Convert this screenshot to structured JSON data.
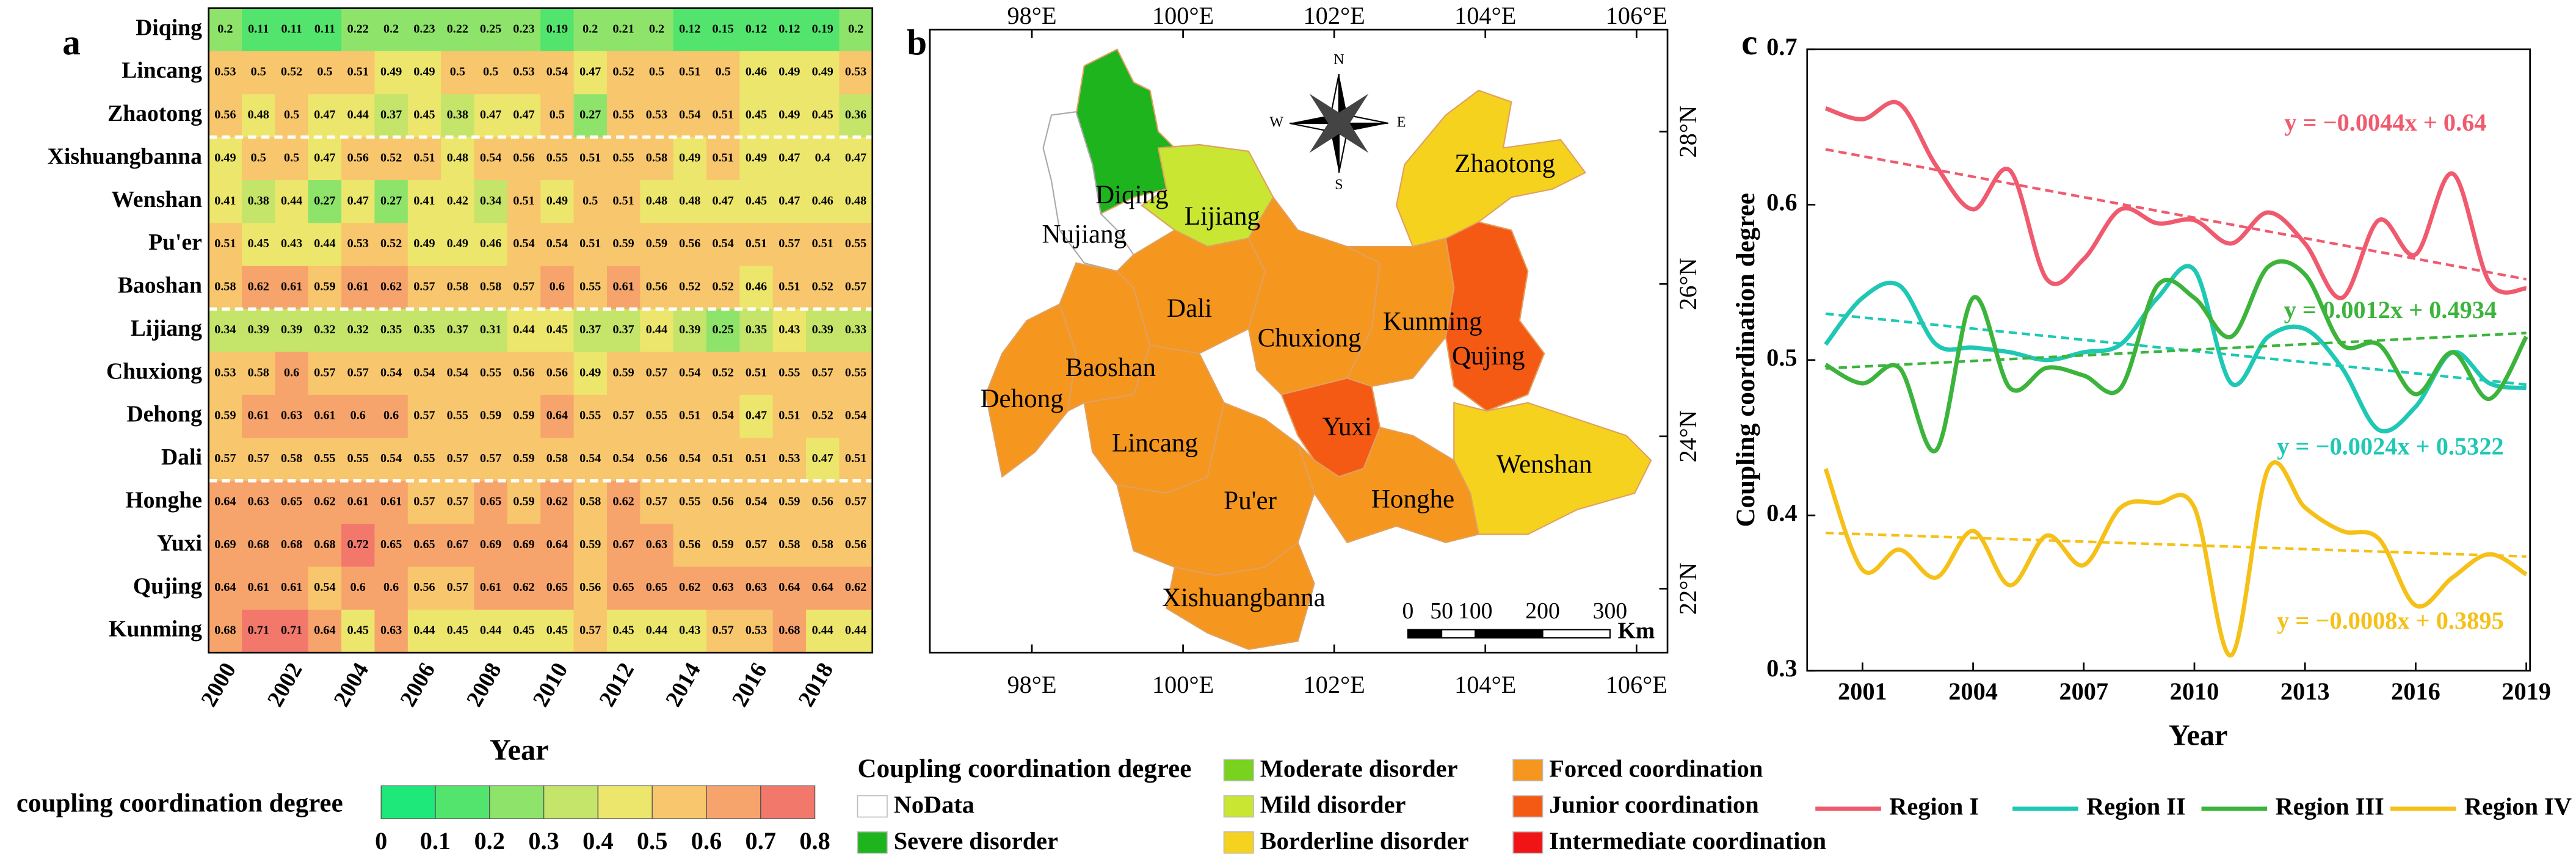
{
  "chart_data": [
    {
      "type": "heatmap",
      "label": "a",
      "xlabel": "Year",
      "categories": [
        "Diqing",
        "Lincang",
        "Zhaotong",
        "Xishuangbanna",
        "Wenshan",
        "Pu'er",
        "Baoshan",
        "Lijiang",
        "Chuxiong",
        "Dehong",
        "Dali",
        "Honghe",
        "Yuxi",
        "Qujing",
        "Kunming"
      ],
      "x": [
        2000,
        null,
        2002,
        null,
        2004,
        null,
        2006,
        null,
        2008,
        null,
        2010,
        null,
        2012,
        null,
        2014,
        null,
        2016,
        null,
        2018,
        null
      ],
      "values": [
        [
          0.2,
          0.11,
          0.11,
          0.11,
          0.22,
          0.2,
          0.23,
          0.22,
          0.25,
          0.23,
          0.19,
          0.2,
          0.21,
          0.2,
          0.12,
          0.15,
          0.12,
          0.12,
          0.19,
          0.2
        ],
        [
          0.53,
          0.5,
          0.52,
          0.5,
          0.51,
          0.49,
          0.49,
          0.5,
          0.5,
          0.53,
          0.54,
          0.47,
          0.52,
          0.5,
          0.51,
          0.5,
          0.46,
          0.49,
          0.49,
          0.53
        ],
        [
          0.56,
          0.48,
          0.5,
          0.47,
          0.44,
          0.37,
          0.45,
          0.38,
          0.47,
          0.47,
          0.5,
          0.27,
          0.55,
          0.53,
          0.54,
          0.51,
          0.45,
          0.49,
          0.45,
          0.36
        ],
        [
          0.49,
          0.5,
          0.5,
          0.47,
          0.56,
          0.52,
          0.51,
          0.48,
          0.54,
          0.56,
          0.55,
          0.51,
          0.55,
          0.58,
          0.49,
          0.51,
          0.49,
          0.47,
          0.4,
          0.47
        ],
        [
          0.41,
          0.38,
          0.44,
          0.27,
          0.47,
          0.27,
          0.41,
          0.42,
          0.34,
          0.51,
          0.49,
          0.5,
          0.51,
          0.48,
          0.48,
          0.47,
          0.45,
          0.47,
          0.46,
          0.48
        ],
        [
          0.51,
          0.45,
          0.43,
          0.44,
          0.53,
          0.52,
          0.49,
          0.49,
          0.46,
          0.54,
          0.54,
          0.51,
          0.59,
          0.59,
          0.56,
          0.54,
          0.51,
          0.57,
          0.51,
          0.55
        ],
        [
          0.58,
          0.62,
          0.61,
          0.59,
          0.61,
          0.62,
          0.57,
          0.58,
          0.58,
          0.57,
          0.6,
          0.55,
          0.61,
          0.56,
          0.52,
          0.52,
          0.46,
          0.51,
          0.52,
          0.57
        ],
        [
          0.34,
          0.39,
          0.39,
          0.32,
          0.32,
          0.35,
          0.35,
          0.37,
          0.31,
          0.44,
          0.45,
          0.37,
          0.37,
          0.44,
          0.39,
          0.25,
          0.35,
          0.43,
          0.39,
          0.33
        ],
        [
          0.53,
          0.58,
          0.6,
          0.57,
          0.57,
          0.54,
          0.54,
          0.54,
          0.55,
          0.56,
          0.56,
          0.49,
          0.59,
          0.57,
          0.54,
          0.52,
          0.51,
          0.55,
          0.57,
          0.55
        ],
        [
          0.59,
          0.61,
          0.63,
          0.61,
          0.6,
          0.6,
          0.57,
          0.55,
          0.59,
          0.59,
          0.64,
          0.55,
          0.57,
          0.55,
          0.51,
          0.54,
          0.47,
          0.51,
          0.52,
          0.54
        ],
        [
          0.57,
          0.57,
          0.58,
          0.55,
          0.55,
          0.54,
          0.55,
          0.57,
          0.57,
          0.59,
          0.58,
          0.54,
          0.54,
          0.56,
          0.54,
          0.51,
          0.51,
          0.53,
          0.47,
          0.51
        ],
        [
          0.64,
          0.63,
          0.65,
          0.62,
          0.61,
          0.61,
          0.57,
          0.57,
          0.65,
          0.59,
          0.62,
          0.58,
          0.62,
          0.57,
          0.55,
          0.56,
          0.54,
          0.59,
          0.56,
          0.57
        ],
        [
          0.69,
          0.68,
          0.68,
          0.68,
          0.72,
          0.65,
          0.65,
          0.67,
          0.69,
          0.69,
          0.64,
          0.59,
          0.67,
          0.63,
          0.56,
          0.59,
          0.57,
          0.58,
          0.58,
          0.56
        ],
        [
          0.64,
          0.61,
          0.61,
          0.54,
          0.6,
          0.6,
          0.56,
          0.57,
          0.61,
          0.62,
          0.65,
          0.56,
          0.65,
          0.65,
          0.62,
          0.63,
          0.63,
          0.64,
          0.64,
          0.62
        ],
        [
          0.68,
          0.71,
          0.71,
          0.64,
          0.45,
          0.63,
          0.44,
          0.45,
          0.44,
          0.45,
          0.45,
          0.57,
          0.45,
          0.44,
          0.43,
          0.57,
          0.53,
          0.68,
          0.44,
          0.44
        ]
      ],
      "colorbar": {
        "title": "coupling coordination degree",
        "ticks": [
          0,
          0.1,
          0.2,
          0.3,
          0.4,
          0.5,
          0.6,
          0.7,
          0.8
        ],
        "colors": [
          "#1fe87a",
          "#52e46c",
          "#8ee46a",
          "#c4e46a",
          "#ece66c",
          "#f8c66c",
          "#f6a46c",
          "#f2786c"
        ]
      }
    },
    {
      "type": "line",
      "label": "c",
      "xlabel": "Year",
      "ylabel": "Coupling coordination degree",
      "x": [
        2000,
        2001,
        2002,
        2003,
        2004,
        2005,
        2006,
        2007,
        2008,
        2009,
        2010,
        2011,
        2012,
        2013,
        2014,
        2015,
        2016,
        2017,
        2018,
        2019
      ],
      "xlim": [
        1999.5,
        2019.1
      ],
      "xticks": [
        2001,
        2004,
        2007,
        2010,
        2013,
        2016,
        2019
      ],
      "ylim": [
        0.3,
        0.7
      ],
      "yticks": [
        0.3,
        0.4,
        0.5,
        0.6,
        0.7
      ],
      "series": [
        {
          "name": "Region I",
          "color": "#f05a6e",
          "values": [
            0.662,
            0.655,
            0.665,
            0.625,
            0.597,
            0.622,
            0.552,
            0.565,
            0.597,
            0.588,
            0.59,
            0.575,
            0.595,
            0.575,
            0.54,
            0.59,
            0.568,
            0.62,
            0.55,
            0.546
          ],
          "trend": {
            "label": "y = −0.0044x + 0.64",
            "slope": -0.0044,
            "intercept": 0.64
          }
        },
        {
          "name": "Region II",
          "color": "#1ec8b4",
          "values": [
            0.51,
            0.54,
            0.548,
            0.51,
            0.508,
            0.505,
            0.5,
            0.505,
            0.51,
            0.54,
            0.558,
            0.485,
            0.515,
            0.52,
            0.495,
            0.455,
            0.47,
            0.505,
            0.485,
            0.482
          ],
          "trend": {
            "label": "y = −0.0024x + 0.5322",
            "slope": -0.0024,
            "intercept": 0.5322
          }
        },
        {
          "name": "Region III",
          "color": "#3cb43c",
          "values": [
            0.497,
            0.485,
            0.495,
            0.442,
            0.54,
            0.482,
            0.495,
            0.49,
            0.482,
            0.548,
            0.54,
            0.515,
            0.56,
            0.555,
            0.51,
            0.51,
            0.478,
            0.505,
            0.475,
            0.515
          ],
          "trend": {
            "label": "y = 0.0012x + 0.4934",
            "slope": 0.0012,
            "intercept": 0.4934
          }
        },
        {
          "name": "Region IV",
          "color": "#f5c018",
          "values": [
            0.43,
            0.365,
            0.378,
            0.36,
            0.39,
            0.355,
            0.387,
            0.368,
            0.405,
            0.408,
            0.405,
            0.31,
            0.43,
            0.405,
            0.39,
            0.385,
            0.342,
            0.36,
            0.375,
            0.362
          ],
          "trend": {
            "label": "y = −0.0008x + 0.3895",
            "slope": -0.0008,
            "intercept": 0.3895
          }
        }
      ]
    }
  ],
  "map": {
    "label": "b",
    "lonlim": [
      96.65,
      106.41
    ],
    "latlim": [
      21.16,
      29.34
    ],
    "xticks": [
      {
        "value": 98,
        "label": "98°E"
      },
      {
        "value": 100,
        "label": "100°E"
      },
      {
        "value": 102,
        "label": "102°E"
      },
      {
        "value": 104,
        "label": "104°E"
      },
      {
        "value": 106,
        "label": "106°E"
      }
    ],
    "yticks": [
      {
        "value": 22,
        "label": "22°N"
      },
      {
        "value": 24,
        "label": "24°N"
      },
      {
        "value": 26,
        "label": "26°N"
      },
      {
        "value": 28,
        "label": "28°N"
      }
    ],
    "compass": [
      "N",
      "E",
      "S",
      "W"
    ],
    "scale_bar": {
      "ticks": [
        0,
        50,
        100,
        200,
        300
      ],
      "unit": "Km"
    },
    "legend_title": "Coupling coordination degree",
    "legend": [
      {
        "name": "NoData",
        "color": "#ffffff"
      },
      {
        "name": "Severe disorder",
        "color": "#1eb41e"
      },
      {
        "name": "Moderate disorder",
        "color": "#78d21e"
      },
      {
        "name": "Mild disorder",
        "color": "#c8e632"
      },
      {
        "name": "Borderline disorder",
        "color": "#f5d21e"
      },
      {
        "name": "Forced coordination",
        "color": "#f5961e"
      },
      {
        "name": "Junior coordination",
        "color": "#f55a14"
      },
      {
        "name": "Intermediate coordination",
        "color": "#f01414"
      }
    ],
    "regions": [
      {
        "name": "Diqing",
        "class": "Severe disorder"
      },
      {
        "name": "Nujiang",
        "class": "NoData"
      },
      {
        "name": "Lijiang",
        "class": "Mild disorder"
      },
      {
        "name": "Zhaotong",
        "class": "Borderline disorder"
      },
      {
        "name": "Dehong",
        "class": "Forced coordination"
      },
      {
        "name": "Baoshan",
        "class": "Forced coordination"
      },
      {
        "name": "Dali",
        "class": "Forced coordination"
      },
      {
        "name": "Lincang",
        "class": "Forced coordination"
      },
      {
        "name": "Pu'er",
        "class": "Forced coordination"
      },
      {
        "name": "Xishuangbanna",
        "class": "Forced coordination"
      },
      {
        "name": "Chuxiong",
        "class": "Forced coordination"
      },
      {
        "name": "Kunming",
        "class": "Forced coordination"
      },
      {
        "name": "Qujing",
        "class": "Junior coordination"
      },
      {
        "name": "Yuxi",
        "class": "Junior coordination"
      },
      {
        "name": "Honghe",
        "class": "Forced coordination"
      },
      {
        "name": "Wenshan",
        "class": "Borderline disorder"
      }
    ]
  }
}
